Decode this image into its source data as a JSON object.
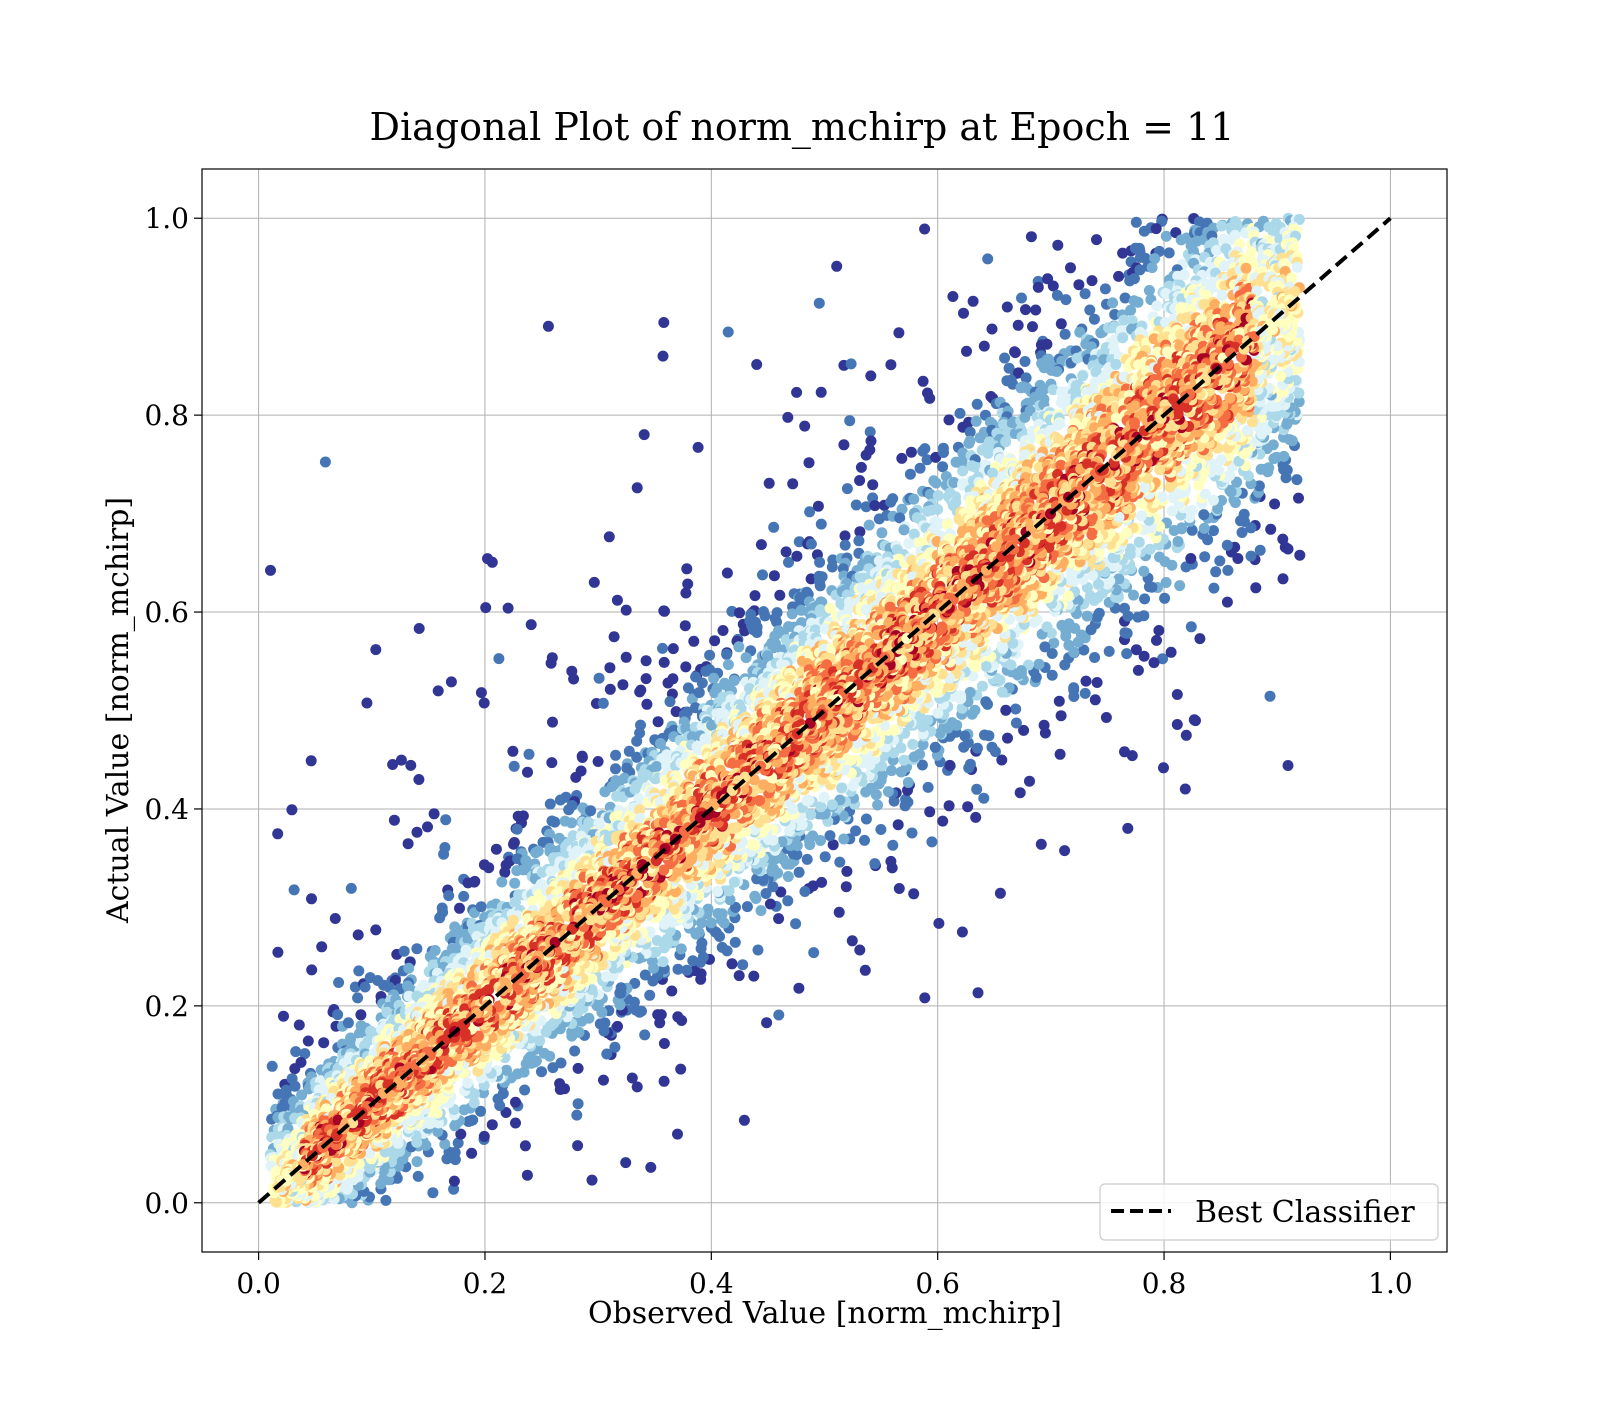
{
  "chart_data": {
    "type": "scatter",
    "title": "Diagonal Plot of norm_mchirp at Epoch = 11",
    "xlabel": "Observed Value [norm_mchirp]",
    "ylabel": "Actual Value [norm_mchirp]",
    "xlim": [
      -0.05,
      1.05
    ],
    "ylim": [
      -0.05,
      1.05
    ],
    "xticks": [
      "0.0",
      "0.2",
      "0.4",
      "0.6",
      "0.8",
      "1.0"
    ],
    "yticks": [
      "0.0",
      "0.2",
      "0.4",
      "0.6",
      "0.8",
      "1.0"
    ],
    "grid": true,
    "colormap": "RdYlBu_r (color encodes point density, high = red)",
    "colormap_colors": [
      "#313695",
      "#4575b4",
      "#74add1",
      "#abd9e9",
      "#e0f3f8",
      "#ffffbf",
      "#fee090",
      "#fdae61",
      "#f46d43",
      "#d73027",
      "#a50026"
    ],
    "scatter_distribution": {
      "description": "Dense cloud of points along the diagonal y = x, x range approx 0.01 to 0.92, y range approx 0.0 to 1.0",
      "x_range": [
        0.01,
        0.92
      ],
      "y_range": [
        0.0,
        1.0
      ],
      "point_count_approx": 9000
    },
    "lines": [
      {
        "name": "Best Classifier",
        "style": "dashed",
        "color": "#000000",
        "x": [
          0.0,
          1.0
        ],
        "y": [
          0.0,
          1.0
        ]
      }
    ],
    "legend": {
      "position": "lower-right",
      "entries": [
        "Best Classifier"
      ]
    }
  }
}
